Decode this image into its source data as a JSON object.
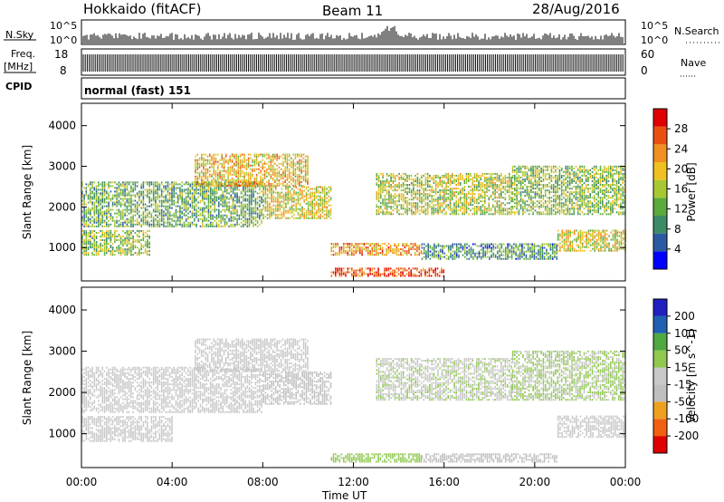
{
  "header": {
    "radar": "Hokkaido (fitACF)",
    "beam": "Beam 11",
    "date": "28/Aug/2016"
  },
  "summary": {
    "nsky_label": "N.Sky",
    "nsky_ticks": [
      "10^5",
      "10^0"
    ],
    "nsearch_label": "N.Search",
    "freq_label": "Freq.",
    "freq_unit": "[MHz]",
    "freq_ticks": [
      "18",
      "8"
    ],
    "nave_ticks": [
      "60",
      "0"
    ],
    "nave_label": "Nave",
    "cpid_label": "CPID",
    "cpid_value": "normal (fast) 151"
  },
  "colors": {
    "power_scale": [
      "#0000ff",
      "#2b5aa0",
      "#3d8a66",
      "#5aaa3c",
      "#a8c832",
      "#f0c020",
      "#f09020",
      "#e85010",
      "#e00000"
    ],
    "velocity_scale": [
      "#e00000",
      "#f06010",
      "#f0a020",
      "#bebebe",
      "#c8c8c8",
      "#90c850",
      "#50a840",
      "#2060b0",
      "#2020c0"
    ]
  },
  "chart_data": [
    {
      "type": "heatmap",
      "panel": "power",
      "title": "",
      "xlabel": "Time UT",
      "ylabel": "Slant Range [km]",
      "x_ticks": [
        "00:00",
        "04:00",
        "08:00",
        "12:00",
        "16:00",
        "20:00",
        "00:00"
      ],
      "xlim": [
        0,
        24
      ],
      "y_ticks": [
        "1000",
        "2000",
        "3000",
        "4000"
      ],
      "ylim": [
        180,
        4550
      ],
      "colorbar": {
        "label": "Power [dB]",
        "ticks": [
          "28",
          "24",
          "20",
          "16",
          "12",
          "8",
          "4"
        ],
        "range": [
          0,
          32
        ]
      },
      "echo_regions": [
        {
          "t": [
            0,
            3
          ],
          "range": [
            800,
            1400
          ],
          "value": 14
        },
        {
          "t": [
            0,
            8
          ],
          "range": [
            1500,
            2600
          ],
          "value": 12
        },
        {
          "t": [
            5,
            10
          ],
          "range": [
            2500,
            3300
          ],
          "value": 20
        },
        {
          "t": [
            8,
            11
          ],
          "range": [
            1700,
            2500
          ],
          "value": 18
        },
        {
          "t": [
            11,
            15
          ],
          "range": [
            800,
            1100
          ],
          "value": 22
        },
        {
          "t": [
            11,
            16
          ],
          "range": [
            280,
            500
          ],
          "value": 28
        },
        {
          "t": [
            13,
            19
          ],
          "range": [
            1800,
            2800
          ],
          "value": 16
        },
        {
          "t": [
            15,
            21
          ],
          "range": [
            700,
            1100
          ],
          "value": 10
        },
        {
          "t": [
            19,
            24
          ],
          "range": [
            1800,
            3000
          ],
          "value": 14
        },
        {
          "t": [
            21,
            24
          ],
          "range": [
            900,
            1400
          ],
          "value": 18
        }
      ]
    },
    {
      "type": "heatmap",
      "panel": "velocity",
      "title": "",
      "xlabel": "Time UT",
      "ylabel": "Slant Range [km]",
      "x_ticks": [
        "00:00",
        "04:00",
        "08:00",
        "12:00",
        "16:00",
        "20:00",
        "00:00"
      ],
      "xlim": [
        0,
        24
      ],
      "y_ticks": [
        "1000",
        "2000",
        "3000",
        "4000"
      ],
      "ylim": [
        180,
        4550
      ],
      "colorbar": {
        "label": "Velocity [m s^-1]",
        "ticks": [
          "200",
          "100",
          "50",
          "15",
          "-15",
          "-50",
          "-100",
          "-200"
        ],
        "range": [
          -250,
          250
        ]
      },
      "echo_regions": [
        {
          "t": [
            0,
            4
          ],
          "range": [
            800,
            1400
          ],
          "value": 0
        },
        {
          "t": [
            0,
            8
          ],
          "range": [
            1500,
            2600
          ],
          "value": 5
        },
        {
          "t": [
            5,
            10
          ],
          "range": [
            2500,
            3300
          ],
          "value": -5
        },
        {
          "t": [
            8,
            11
          ],
          "range": [
            1700,
            2500
          ],
          "value": -40
        },
        {
          "t": [
            11,
            15
          ],
          "range": [
            300,
            500
          ],
          "value": 60
        },
        {
          "t": [
            13,
            19
          ],
          "range": [
            1800,
            2800
          ],
          "value": 20
        },
        {
          "t": [
            15,
            21
          ],
          "range": [
            300,
            500
          ],
          "value": -60
        },
        {
          "t": [
            19,
            24
          ],
          "range": [
            1800,
            3000
          ],
          "value": 30
        },
        {
          "t": [
            21,
            24
          ],
          "range": [
            900,
            1400
          ],
          "value": 0
        }
      ]
    }
  ]
}
